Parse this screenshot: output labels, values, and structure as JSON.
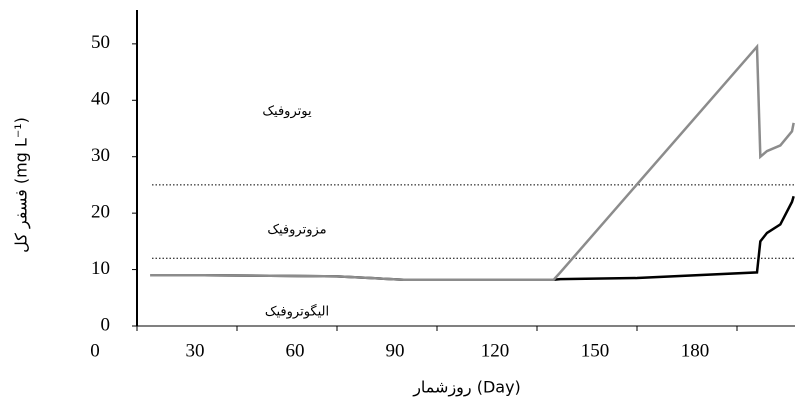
{
  "chart_data": {
    "type": "line",
    "x": [
      4,
      20,
      40,
      60,
      70,
      80,
      100,
      125,
      127,
      150,
      186,
      187,
      189,
      193,
      196.5,
      197
    ],
    "series": [
      {
        "name": null,
        "color": "#000000",
        "values": [
          9,
          9,
          8.9,
          8.8,
          8.5,
          8.2,
          8.2,
          8.2,
          8.3,
          8.5,
          9.5,
          15,
          16.5,
          18,
          22,
          23
        ]
      },
      {
        "name": null,
        "color": "#8c8c8c",
        "values": [
          9,
          9,
          8.9,
          8.8,
          8.5,
          8.2,
          8.2,
          8.2,
          9.5,
          25.1,
          49.5,
          30,
          31,
          32,
          34.5,
          36
        ]
      }
    ],
    "xlim": [
      0,
      197.4
    ],
    "xticks": [
      0,
      30,
      60,
      90,
      120,
      150,
      180
    ],
    "ylim": [
      0,
      56
    ],
    "yticks": [
      0,
      10,
      20,
      30,
      40,
      50
    ],
    "thresholds": [
      25,
      12
    ],
    "annotations": [
      {
        "text": "یوتروفیک",
        "x": 45,
        "y": 38
      },
      {
        "text": "مزوتروفیک",
        "x": 48,
        "y": 17
      },
      {
        "text": "الیگوتروفیک",
        "x": 48,
        "y": 2.5
      }
    ],
    "xlabel": "روزشمار (Day)",
    "ylabel": "فسفر کل (mg L⁻¹)"
  }
}
